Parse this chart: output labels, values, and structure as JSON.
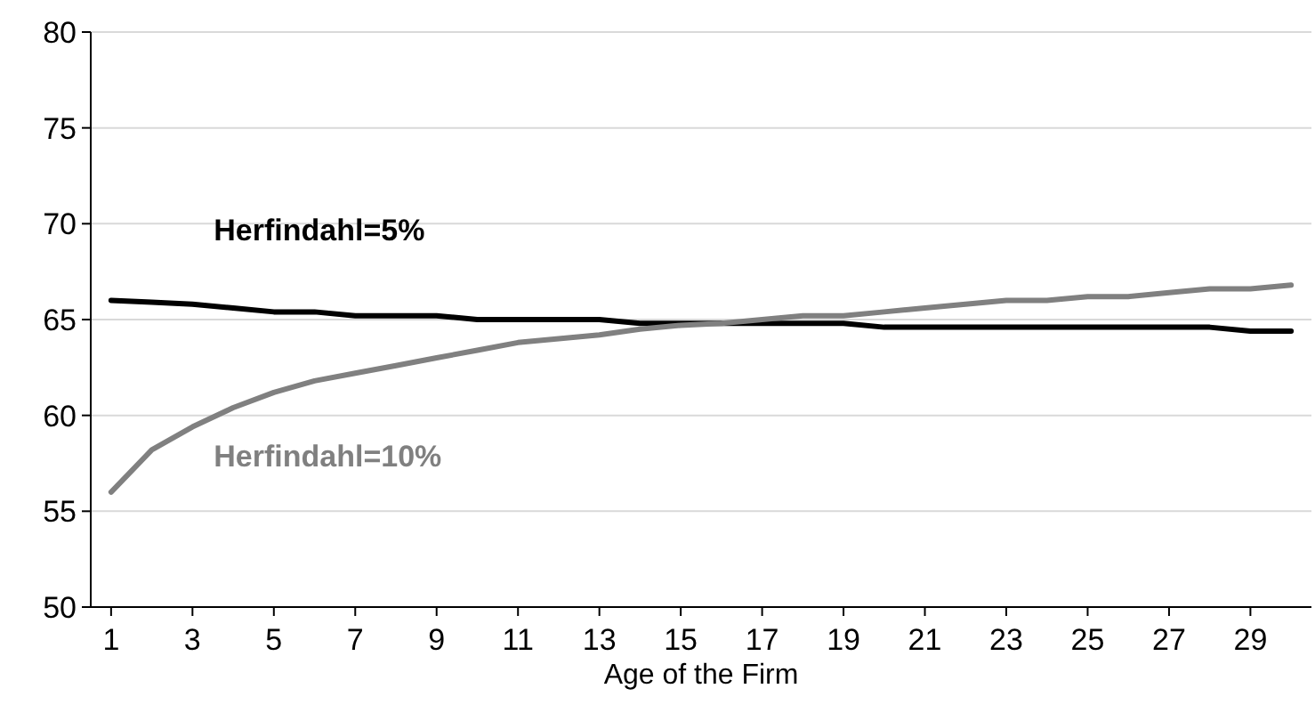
{
  "chart_data": {
    "type": "line",
    "xlabel": "Age of the Firm",
    "x": [
      1,
      2,
      3,
      4,
      5,
      6,
      7,
      8,
      9,
      10,
      11,
      12,
      13,
      14,
      15,
      16,
      17,
      18,
      19,
      20,
      21,
      22,
      23,
      24,
      25,
      26,
      27,
      28,
      29,
      30
    ],
    "xlim": [
      0.5,
      30.5
    ],
    "xticks": [
      1,
      3,
      5,
      7,
      9,
      11,
      13,
      15,
      17,
      19,
      21,
      23,
      25,
      27,
      29
    ],
    "series": [
      {
        "name": "Herfindahl=5%",
        "color": "#000000",
        "values": [
          66.0,
          65.9,
          65.8,
          65.6,
          65.4,
          65.4,
          65.2,
          65.2,
          65.2,
          65.0,
          65.0,
          65.0,
          65.0,
          64.8,
          64.8,
          64.8,
          64.8,
          64.8,
          64.8,
          64.6,
          64.6,
          64.6,
          64.6,
          64.6,
          64.6,
          64.6,
          64.6,
          64.6,
          64.4,
          64.4
        ]
      },
      {
        "name": "Herfindahl=10%",
        "color": "#808080",
        "values": [
          56.0,
          58.2,
          59.4,
          60.4,
          61.2,
          61.8,
          62.2,
          62.6,
          63.0,
          63.4,
          63.8,
          64.0,
          64.2,
          64.5,
          64.7,
          64.8,
          65.0,
          65.2,
          65.2,
          65.4,
          65.6,
          65.8,
          66.0,
          66.0,
          66.2,
          66.2,
          66.4,
          66.6,
          66.6,
          66.8
        ]
      }
    ],
    "ylim": [
      50,
      80
    ],
    "yticks": [
      50,
      55,
      60,
      65,
      70,
      75,
      80
    ],
    "grid": "y",
    "marker": "none",
    "line_style": "solid"
  }
}
